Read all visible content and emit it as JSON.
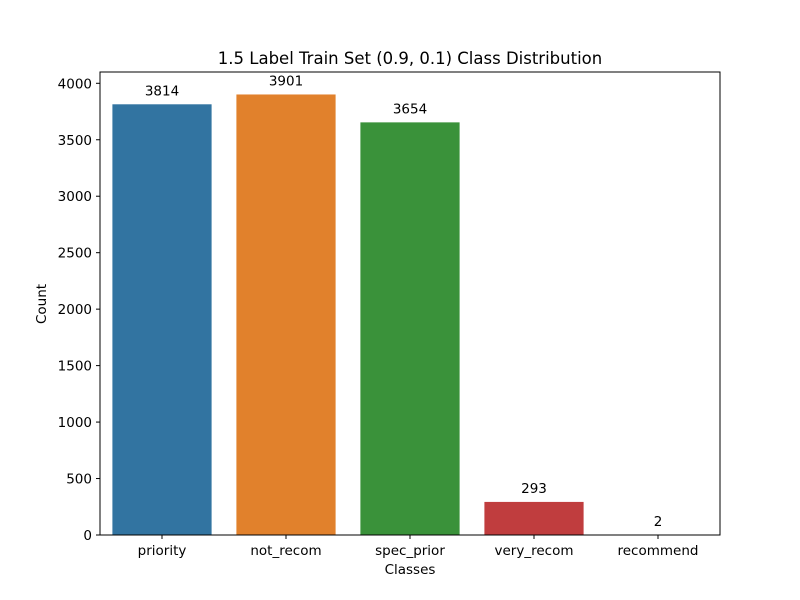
{
  "chart_data": {
    "type": "bar",
    "title": "1.5 Label Train Set (0.9, 0.1) Class Distribution",
    "xlabel": "Classes",
    "ylabel": "Count",
    "categories": [
      "priority",
      "not_recom",
      "spec_prior",
      "very_recom",
      "recommend"
    ],
    "values": [
      3814,
      3901,
      3654,
      293,
      2
    ],
    "data_labels": [
      "3814",
      "3901",
      "3654",
      "293",
      "2"
    ],
    "colors": [
      "#3274a1",
      "#e1812c",
      "#3a923a",
      "#c03d3e",
      "#9372b2"
    ],
    "ylim": [
      0,
      4100
    ],
    "yticks": [
      0,
      500,
      1000,
      1500,
      2000,
      2500,
      3000,
      3500,
      4000
    ],
    "ytick_labels": [
      "0",
      "500",
      "1000",
      "1500",
      "2000",
      "2500",
      "3000",
      "3500",
      "4000"
    ],
    "grid": false,
    "legend": "none"
  }
}
